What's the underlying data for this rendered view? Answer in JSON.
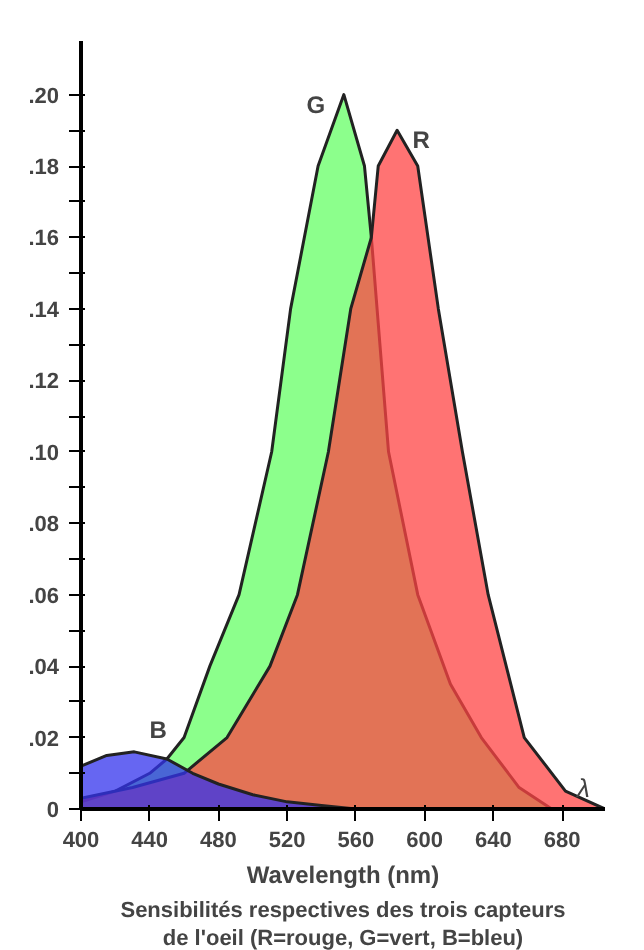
{
  "chart_data": {
    "type": "area",
    "xlabel": "Wavelength (nm)",
    "annotations": [
      "Sensibilités respectives des trois capteurs de l'oeil (R=rouge, G=vert, B=bleu)",
      "λ"
    ],
    "xlim": [
      400,
      705
    ],
    "ylim": [
      0,
      0.215
    ],
    "xticks": [
      400,
      440,
      480,
      520,
      560,
      600,
      640,
      680
    ],
    "yticks": [
      {
        "value": 0,
        "label": "0"
      },
      {
        "value": 0.01,
        "label": null
      },
      {
        "value": 0.02,
        "label": ".02"
      },
      {
        "value": 0.03,
        "label": null
      },
      {
        "value": 0.04,
        "label": ".04"
      },
      {
        "value": 0.05,
        "label": null
      },
      {
        "value": 0.06,
        "label": ".06"
      },
      {
        "value": 0.07,
        "label": null
      },
      {
        "value": 0.08,
        "label": ".08"
      },
      {
        "value": 0.09,
        "label": null
      },
      {
        "value": 0.1,
        "label": ".10"
      },
      {
        "value": 0.11,
        "label": null
      },
      {
        "value": 0.12,
        "label": ".12"
      },
      {
        "value": 0.13,
        "label": null
      },
      {
        "value": 0.14,
        "label": ".14"
      },
      {
        "value": 0.15,
        "label": null
      },
      {
        "value": 0.16,
        "label": ".16"
      },
      {
        "value": 0.17,
        "label": null
      },
      {
        "value": 0.18,
        "label": ".18"
      },
      {
        "value": 0.19,
        "label": null
      },
      {
        "value": 0.2,
        "label": ".20"
      }
    ],
    "grid": false,
    "series": [
      {
        "name": "G",
        "color": "#66ff66",
        "x": [
          400,
          420,
          440,
          450,
          460,
          475,
          492,
          511,
          522,
          538,
          553,
          565,
          569,
          579,
          596,
          615,
          633,
          655,
          674
        ],
        "values": [
          0.002,
          0.005,
          0.01,
          0.014,
          0.02,
          0.04,
          0.06,
          0.1,
          0.14,
          0.18,
          0.2,
          0.18,
          0.16,
          0.1,
          0.06,
          0.035,
          0.02,
          0.006,
          0
        ]
      },
      {
        "name": "R",
        "color": "#ff4444",
        "x": [
          400,
          430,
          460,
          485,
          510,
          526,
          544,
          557,
          569,
          573,
          584,
          596,
          608,
          622,
          637,
          658,
          682,
          705
        ],
        "values": [
          0.003,
          0.006,
          0.01,
          0.02,
          0.04,
          0.06,
          0.1,
          0.14,
          0.16,
          0.18,
          0.19,
          0.18,
          0.14,
          0.1,
          0.06,
          0.02,
          0.005,
          0
        ]
      },
      {
        "name": "B",
        "color": "#3333ee",
        "x": [
          400,
          415,
          431,
          450,
          465,
          480,
          500,
          520,
          540,
          560
        ],
        "values": [
          0.012,
          0.015,
          0.016,
          0.014,
          0.01,
          0.007,
          0.004,
          0.002,
          0.001,
          0
        ]
      }
    ]
  }
}
